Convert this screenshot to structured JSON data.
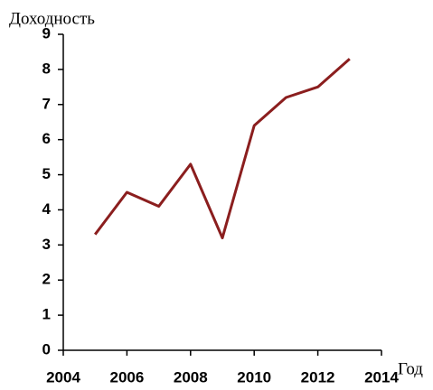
{
  "chart_data": {
    "type": "line",
    "y_label": "Доходность",
    "x_label": "Год",
    "x": [
      2005,
      2006,
      2007,
      2008,
      2009,
      2010,
      2011,
      2012,
      2013
    ],
    "series": [
      {
        "color": "#8b1e1e",
        "values": [
          3.3,
          4.5,
          4.1,
          5.3,
          3.2,
          6.4,
          7.2,
          7.5,
          8.3
        ]
      }
    ],
    "xlim": [
      2004,
      2014
    ],
    "xticks": [
      2004,
      2006,
      2008,
      2010,
      2012,
      2014
    ],
    "ylim": [
      0,
      9
    ],
    "yticks": [
      0,
      1,
      2,
      3,
      4,
      5,
      6,
      7,
      8,
      9
    ],
    "grid": false
  }
}
